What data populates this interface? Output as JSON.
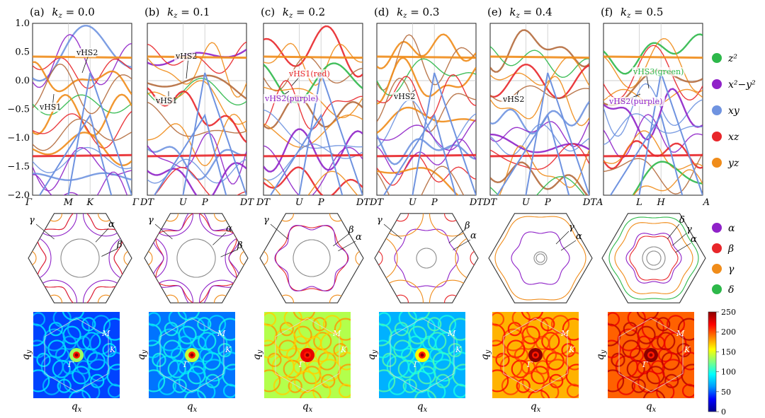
{
  "colors": {
    "z2": "#2db84a",
    "x2y2": "#8f22c8",
    "xy": "#6f93e0",
    "xz": "#e8262a",
    "yz": "#f08c1a",
    "sheet_alpha": "#8f22c8",
    "sheet_beta": "#e8262a",
    "sheet_gamma": "#f08c1a",
    "sheet_delta": "#2db84a",
    "band_mix": "#b46a3c",
    "gray": "#8a8a8a"
  },
  "band_panels": [
    {
      "letter": "(a)",
      "kz": "k_z = 0.0",
      "kz_math": "0.0",
      "kpoints": [
        "Γ",
        "M",
        "K",
        "Γ"
      ],
      "annotations": [
        {
          "text": "vHS2",
          "color": "#111111"
        },
        {
          "text": "vHS1",
          "color": "#111111"
        }
      ]
    },
    {
      "letter": "(b)",
      "kz": "k_z = 0.1",
      "kz_math": "0.1",
      "kpoints": [
        "DT",
        "U",
        "P",
        "DT"
      ],
      "annotations": [
        {
          "text": "vHS2",
          "color": "#111111"
        },
        {
          "text": "vHS1",
          "color": "#111111"
        }
      ]
    },
    {
      "letter": "(c)",
      "kz": "k_z = 0.2",
      "kz_math": "0.2",
      "kpoints": [
        "DT",
        "U",
        "P",
        "DT"
      ],
      "annotations": [
        {
          "text": "vHS1(red)",
          "color": "#e8262a"
        },
        {
          "text": "vHS2(purple)",
          "color": "#8f22c8"
        }
      ]
    },
    {
      "letter": "(d)",
      "kz": "k_z = 0.3",
      "kz_math": "0.3",
      "kpoints": [
        "DT",
        "U",
        "P",
        "DT"
      ],
      "annotations": [
        {
          "text": "vHS2",
          "color": "#111111"
        }
      ]
    },
    {
      "letter": "(e)",
      "kz": "k_z = 0.4",
      "kz_math": "0.4",
      "kpoints": [
        "DT",
        "U",
        "P",
        "DT"
      ],
      "annotations": [
        {
          "text": "vHS2",
          "color": "#111111"
        }
      ]
    },
    {
      "letter": "(f)",
      "kz": "k_z = 0.5",
      "kz_math": "0.5",
      "kpoints": [
        "A",
        "L",
        "H",
        "A"
      ],
      "annotations": [
        {
          "text": "vHS3(green)",
          "color": "#2db84a"
        },
        {
          "text": "vHS2(purple)",
          "color": "#8f22c8"
        }
      ]
    }
  ],
  "y_axis": {
    "ticks": [
      "1.0",
      "0.5",
      "0.0",
      "−0.5",
      "−1.0",
      "−1.5",
      "−2.0"
    ],
    "range": [
      -2.0,
      1.0
    ]
  },
  "orbital_legend": [
    {
      "key": "z2",
      "label": "z²",
      "color": "#2db84a"
    },
    {
      "key": "x2y2",
      "label": "x²−y²",
      "color": "#8f22c8"
    },
    {
      "key": "xy",
      "label": "xy",
      "color": "#6f93e0"
    },
    {
      "key": "xz",
      "label": "xz",
      "color": "#e8262a"
    },
    {
      "key": "yz",
      "label": "yz",
      "color": "#f08c1a"
    }
  ],
  "fermi_panels": [
    {
      "labels": [
        "γ",
        "α",
        "β"
      ]
    },
    {
      "labels": [
        "γ",
        "α",
        "β"
      ]
    },
    {
      "labels": [
        "γ",
        "β",
        "α"
      ]
    },
    {
      "labels": [
        "γ",
        "β",
        "α"
      ]
    },
    {
      "labels": [
        "γ",
        "α"
      ]
    },
    {
      "labels": [
        "δ",
        "γ",
        "α"
      ]
    }
  ],
  "sheet_legend": [
    {
      "label": "α",
      "color": "#8f22c8"
    },
    {
      "label": "β",
      "color": "#e8262a"
    },
    {
      "label": "γ",
      "color": "#f08c1a"
    },
    {
      "label": "δ",
      "color": "#2db84a"
    }
  ],
  "heatmaps": {
    "points": {
      "M": "M",
      "K": "K",
      "G": "Γ"
    },
    "xlabel": "q",
    "xlabel_sub": "x",
    "ylabel": "q",
    "ylabel_sub": "y",
    "intensity_levels": [
      0.18,
      0.22,
      0.55,
      0.28,
      0.7,
      0.78
    ]
  },
  "colorbar": {
    "ticks": [
      "250",
      "200",
      "150",
      "100",
      "50",
      "0"
    ],
    "range": [
      0,
      250
    ]
  }
}
